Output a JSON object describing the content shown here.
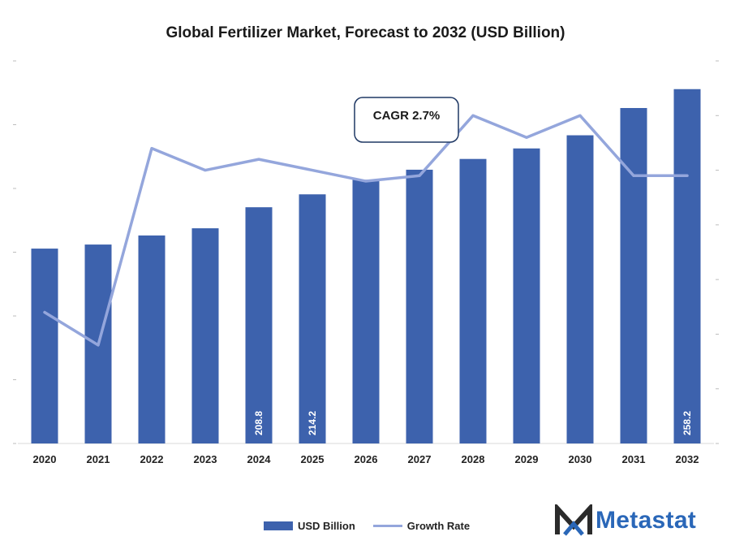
{
  "chart_data": {
    "type": "bar",
    "title": "Global Fertilizer Market, Forecast to 2032 (USD Billion)",
    "categories": [
      "2020",
      "2021",
      "2022",
      "2023",
      "2024",
      "2025",
      "2026",
      "2027",
      "2028",
      "2029",
      "2030",
      "2031",
      "2032"
    ],
    "series": [
      {
        "name": "USD Billion",
        "type": "bar",
        "axis": "left",
        "color": "#3d62ad",
        "values": [
          191.5,
          193.2,
          197.0,
          200.0,
          208.8,
          214.2,
          220.3,
          224.5,
          229.0,
          233.4,
          238.9,
          250.3,
          258.2
        ],
        "data_labels": {
          "2024": "208.8",
          "2025": "214.2",
          "2032": "258.2"
        }
      },
      {
        "name": "Growth Rate",
        "type": "line",
        "axis": "right",
        "color": "#94a6dc",
        "values": [
          1.2,
          0.9,
          2.7,
          2.5,
          2.6,
          2.5,
          2.4,
          2.45,
          3.0,
          2.8,
          3.0,
          2.45,
          2.45
        ]
      }
    ],
    "ylim_left": [
      110,
      270
    ],
    "ylim_right": [
      0,
      3.5
    ],
    "annotation": "CAGR 2.7%",
    "legend": "bottom-center",
    "grid": false
  },
  "legend": {
    "bar_label": "USD Billion",
    "line_label": "Growth Rate"
  },
  "brand": {
    "name": "Metastat",
    "color": "#2a67b8"
  }
}
